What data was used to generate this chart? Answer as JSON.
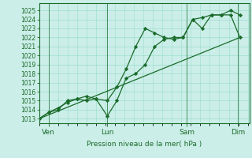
{
  "background_color": "#cceee8",
  "grid_color": "#99ddcc",
  "line_color": "#1a6b2a",
  "title": "Pression niveau de la mer( hPa )",
  "ylim": [
    1012.5,
    1025.8
  ],
  "yticks": [
    1013,
    1014,
    1015,
    1016,
    1017,
    1018,
    1019,
    1020,
    1021,
    1022,
    1023,
    1024,
    1025
  ],
  "day_labels": [
    "Ven",
    "Lun",
    "Sam",
    "Dim"
  ],
  "day_positions": [
    0.417,
    3.0,
    6.5,
    8.75
  ],
  "vline_x": [
    0.417,
    3.0,
    6.5,
    8.75
  ],
  "line1_x": [
    0.0,
    0.42,
    0.83,
    1.25,
    1.67,
    2.08,
    2.5,
    3.0,
    3.42,
    3.83,
    4.25,
    4.67,
    5.08,
    5.5,
    5.92,
    6.33,
    6.75,
    7.17,
    7.58,
    8.0,
    8.42,
    8.83
  ],
  "line1_y": [
    1013.0,
    1013.7,
    1014.0,
    1015.0,
    1015.2,
    1015.0,
    1015.2,
    1013.3,
    1015.0,
    1017.5,
    1018.0,
    1019.0,
    1021.0,
    1021.8,
    1022.0,
    1022.0,
    1024.0,
    1024.2,
    1024.5,
    1024.5,
    1025.0,
    1024.5
  ],
  "line2_x": [
    0.0,
    0.42,
    0.83,
    1.25,
    1.67,
    2.08,
    2.5,
    3.0,
    3.42,
    3.83,
    4.25,
    4.67,
    5.08,
    5.5,
    5.92,
    6.33,
    6.75,
    7.17,
    7.58,
    8.0,
    8.42,
    8.83
  ],
  "line2_y": [
    1013.0,
    1013.7,
    1014.2,
    1014.8,
    1015.2,
    1015.5,
    1015.2,
    1015.0,
    1016.5,
    1018.5,
    1021.0,
    1023.0,
    1022.5,
    1022.0,
    1021.8,
    1022.0,
    1024.0,
    1023.0,
    1024.5,
    1024.5,
    1024.5,
    1022.0
  ],
  "line3_x": [
    0.0,
    8.83
  ],
  "line3_y": [
    1013.0,
    1022.0
  ],
  "xmin": 0.0,
  "xmax": 9.25,
  "title_fontsize": 7.0,
  "tick_fontsize": 5.5,
  "xlabel_fontsize": 6.5
}
